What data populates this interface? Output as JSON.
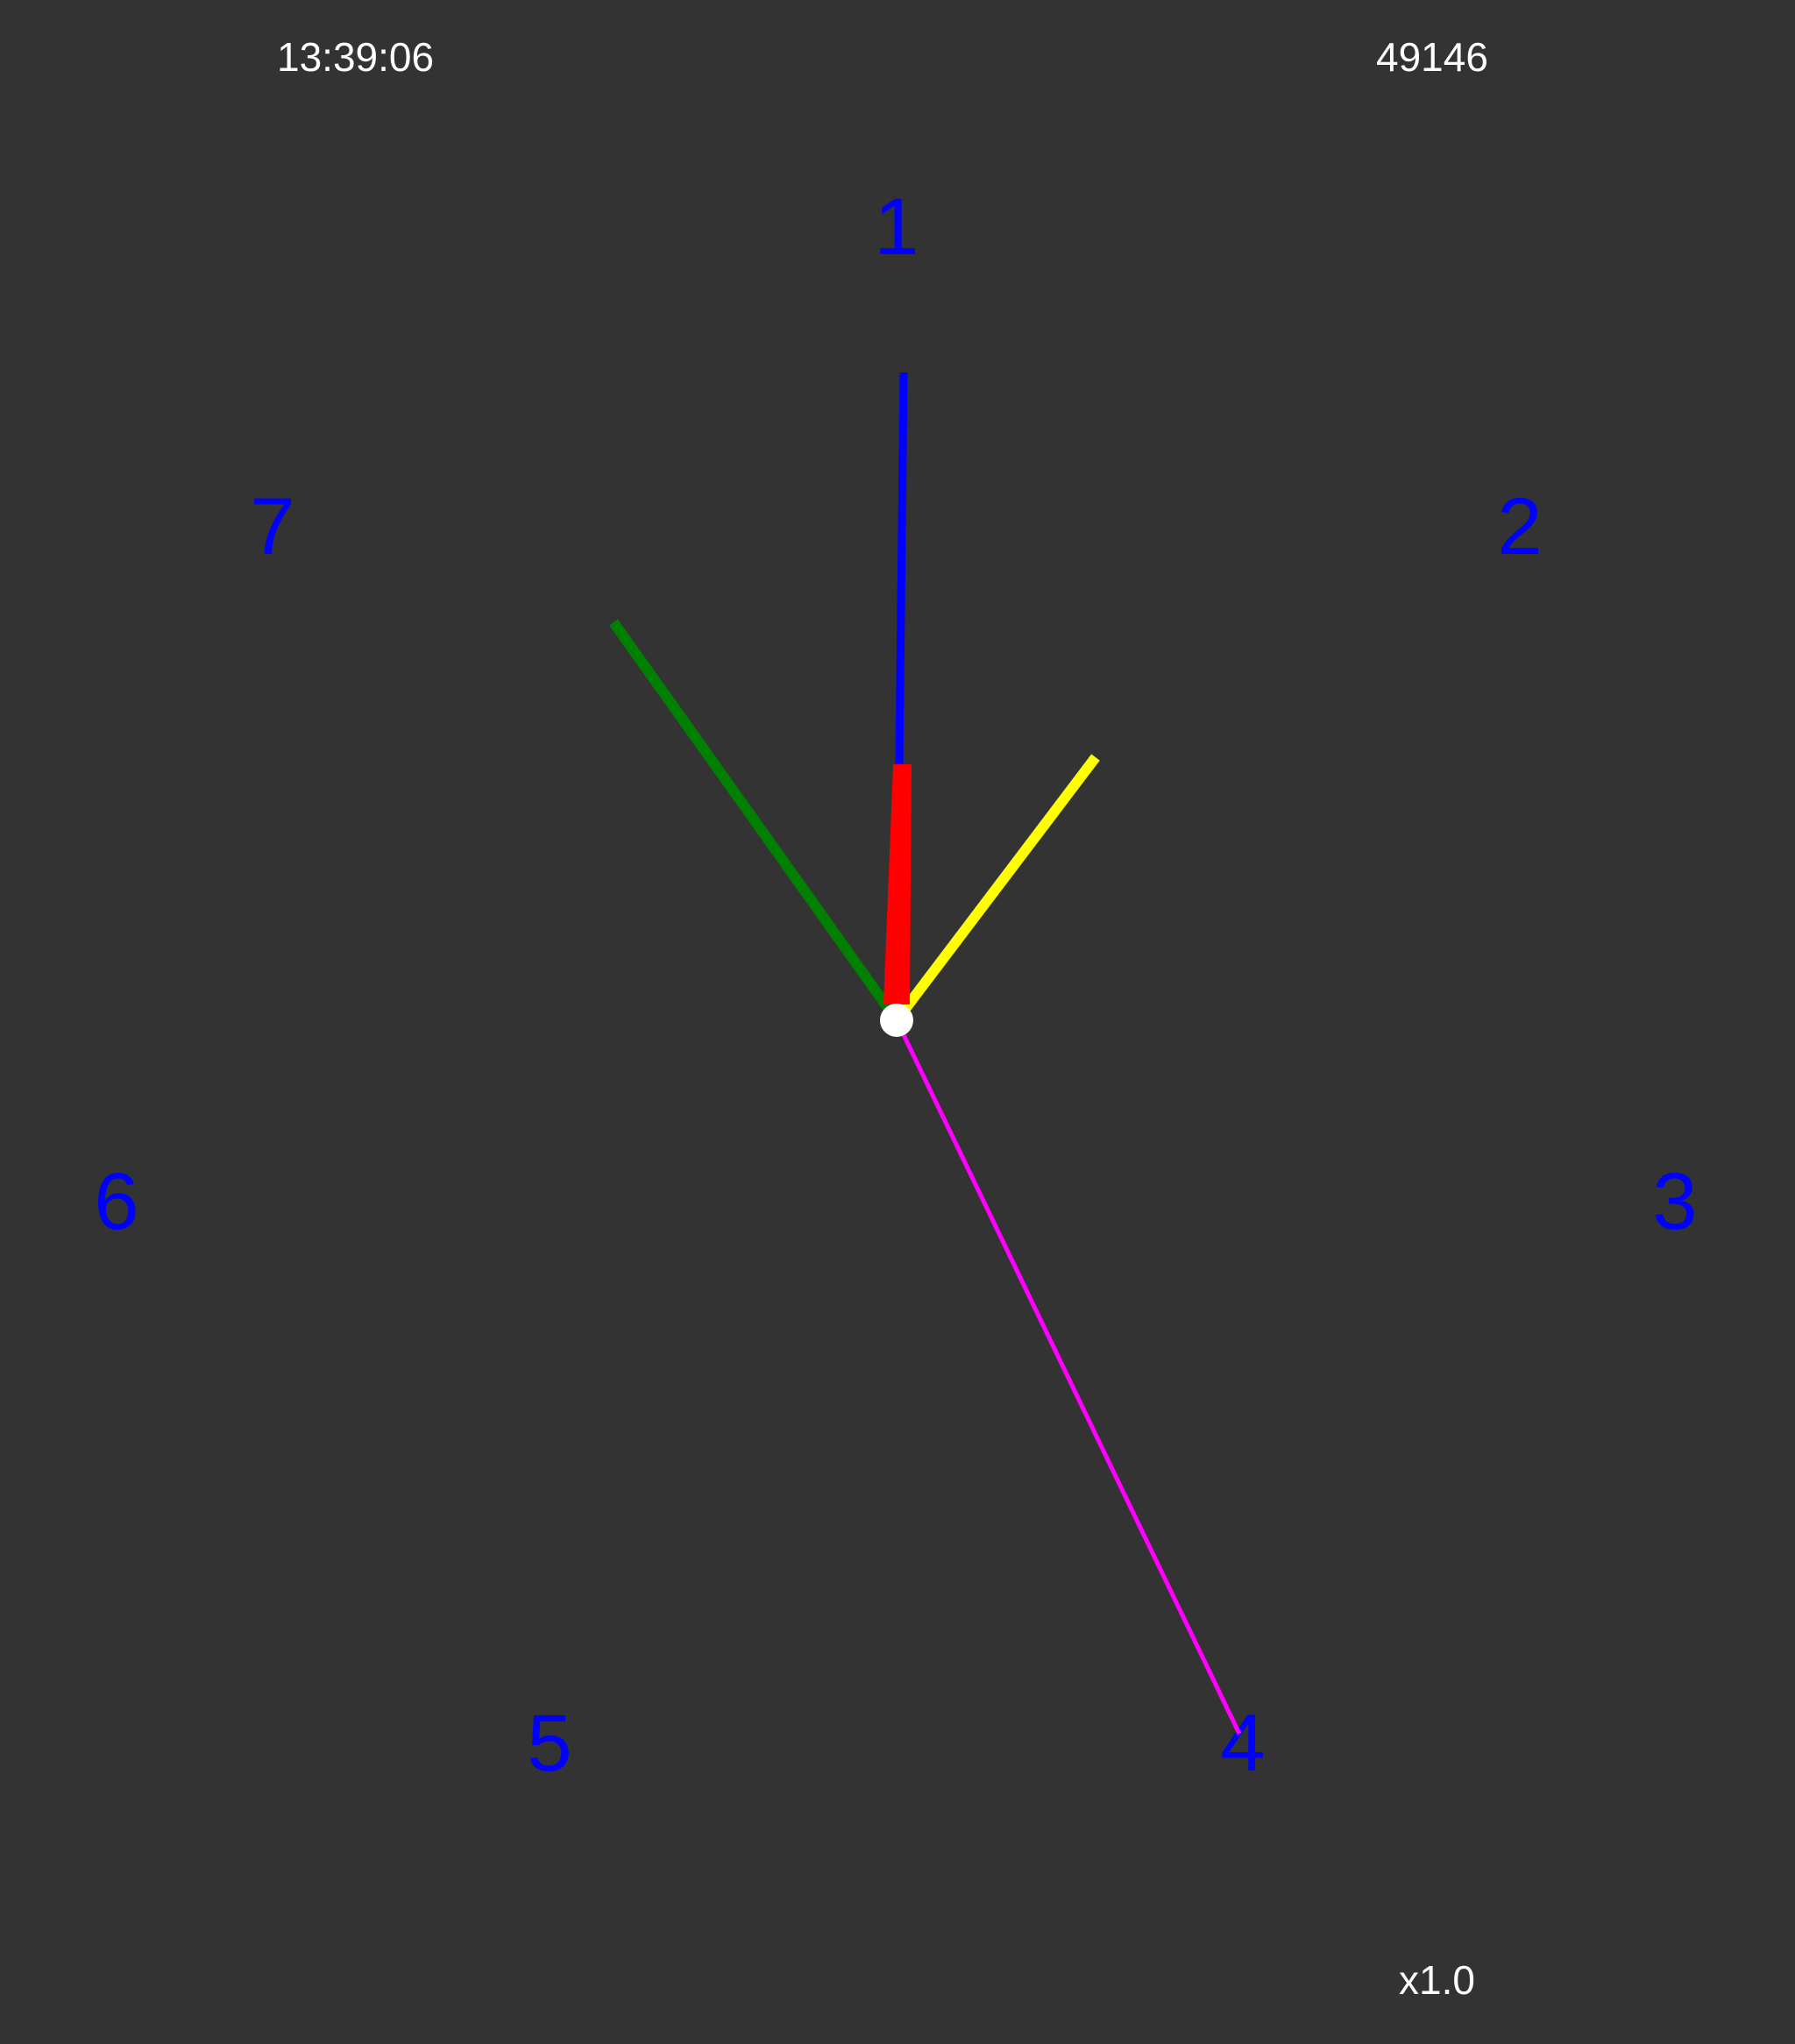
{
  "header": {
    "time_text": "13:39:06",
    "counter_text": "49146"
  },
  "footer": {
    "speed_text": "x1.0"
  },
  "dial": {
    "numeral_color": "#0000ff",
    "numerals": [
      "1",
      "2",
      "3",
      "4",
      "5",
      "6",
      "7"
    ]
  },
  "hands": {
    "blue": {
      "color": "#0000ff"
    },
    "red": {
      "color": "#ff0000"
    },
    "green": {
      "color": "#008000"
    },
    "yellow": {
      "color": "#ffff00"
    },
    "magenta": {
      "color": "#ff00ff"
    },
    "pivot": {
      "color": "#ffffff"
    }
  }
}
